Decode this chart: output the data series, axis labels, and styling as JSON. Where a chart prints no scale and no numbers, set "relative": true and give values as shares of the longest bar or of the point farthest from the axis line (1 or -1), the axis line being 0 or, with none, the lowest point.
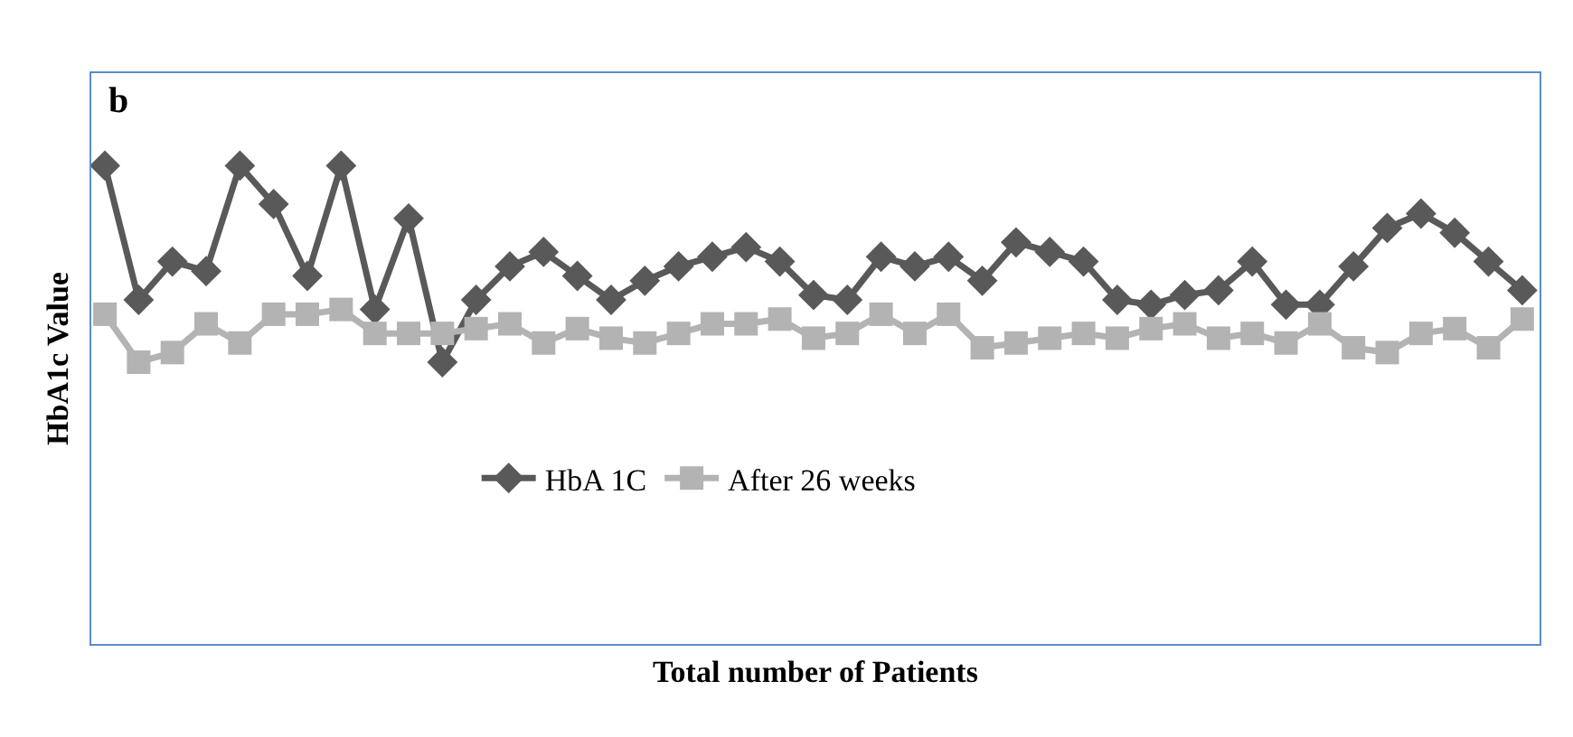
{
  "chart_data": {
    "type": "line",
    "relative": true,
    "xlabel": "Total number of Patients",
    "ylabel": "HbA1c Value",
    "annotations": [
      "b"
    ],
    "legend": "bottom",
    "grid": false,
    "categories": [
      null,
      null,
      null,
      null,
      null,
      null,
      null,
      null,
      null,
      null,
      null,
      null,
      null,
      null,
      null,
      null,
      null,
      null,
      null,
      null,
      null,
      null,
      null,
      null,
      null,
      null,
      null,
      null,
      null,
      null,
      null,
      null,
      null,
      null,
      null,
      null,
      null,
      null,
      null,
      null,
      null,
      null,
      null
    ],
    "series": [
      {
        "name": "HbA 1C",
        "color": "#595959",
        "marker": "diamond",
        "values": [
          1.0,
          0.72,
          0.8,
          0.78,
          1.0,
          0.92,
          0.77,
          1.0,
          0.7,
          0.89,
          0.59,
          0.72,
          0.79,
          0.82,
          0.77,
          0.72,
          0.76,
          0.79,
          0.81,
          0.83,
          0.8,
          0.73,
          0.72,
          0.81,
          0.79,
          0.81,
          0.76,
          0.84,
          0.82,
          0.8,
          0.72,
          0.71,
          0.73,
          0.74,
          0.8,
          0.71,
          0.71,
          0.79,
          0.87,
          0.9,
          0.86,
          0.8,
          0.74
        ]
      },
      {
        "name": "After 26 weeks",
        "color": "#b3b3b3",
        "marker": "square",
        "values": [
          0.69,
          0.59,
          0.61,
          0.67,
          0.63,
          0.69,
          0.69,
          0.7,
          0.65,
          0.65,
          0.65,
          0.66,
          0.67,
          0.63,
          0.66,
          0.64,
          0.63,
          0.65,
          0.67,
          0.67,
          0.68,
          0.64,
          0.65,
          0.69,
          0.65,
          0.69,
          0.62,
          0.63,
          0.64,
          0.65,
          0.64,
          0.66,
          0.67,
          0.64,
          0.65,
          0.63,
          0.67,
          0.62,
          0.61,
          0.65,
          0.66,
          0.62,
          0.68
        ]
      }
    ]
  }
}
